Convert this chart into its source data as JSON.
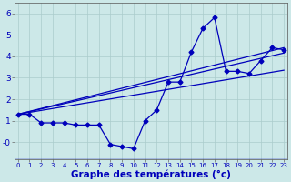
{
  "xlabel": "Graphe des températures (°c)",
  "hours": [
    0,
    1,
    2,
    3,
    4,
    5,
    6,
    7,
    8,
    9,
    10,
    11,
    12,
    13,
    14,
    15,
    16,
    17,
    18,
    19,
    20,
    21,
    22,
    23
  ],
  "main_series": [
    1.3,
    1.3,
    0.9,
    0.9,
    0.9,
    0.8,
    0.8,
    0.8,
    -0.1,
    -0.2,
    -0.3,
    1.0,
    1.5,
    2.8,
    2.8,
    4.2,
    5.3,
    5.8,
    3.3,
    3.3,
    3.2,
    3.8,
    4.4,
    4.3
  ],
  "trend_lines": [
    {
      "x": [
        0,
        23
      ],
      "y": [
        1.3,
        4.15
      ]
    },
    {
      "x": [
        0,
        23
      ],
      "y": [
        1.3,
        3.35
      ]
    },
    {
      "x": [
        0,
        23
      ],
      "y": [
        1.3,
        4.4
      ]
    }
  ],
  "bg_color": "#cce8e8",
  "line_color": "#0000bb",
  "grid_color": "#aacccc",
  "ylim": [
    -0.8,
    6.5
  ],
  "xlim": [
    -0.3,
    23.3
  ],
  "ytick_vals": [
    0,
    1,
    2,
    3,
    4,
    5,
    6
  ],
  "ytick_labels": [
    "-0",
    "1",
    "2",
    "3",
    "4",
    "5",
    "6"
  ],
  "ytick_fontsize": 6.5,
  "xtick_fontsize": 5.0,
  "xlabel_fontsize": 7.5,
  "marker_size": 2.5,
  "line_width": 0.9
}
